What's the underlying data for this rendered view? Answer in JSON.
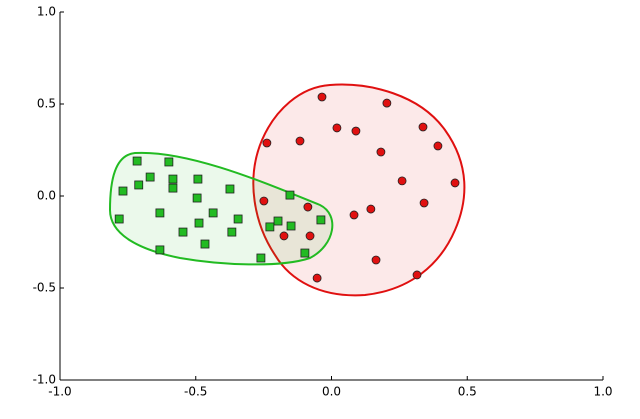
{
  "chart_data": {
    "type": "scatter",
    "xlim": [
      -1.0,
      1.0
    ],
    "ylim": [
      -1.0,
      1.0
    ],
    "xticks": [
      {
        "value": -1.0,
        "label": "-1.0"
      },
      -0.5,
      {
        "value": 0.0,
        "label": "0.0"
      },
      0.5,
      {
        "value": 1.0,
        "label": "1.0"
      }
    ],
    "yticks": [
      {
        "value": -1.0,
        "label": "-1.0"
      },
      -0.5,
      {
        "value": 0.0,
        "label": "0.0"
      },
      0.5,
      {
        "value": 1.0,
        "label": "1.0"
      }
    ],
    "grid": false,
    "series": [
      {
        "color": "#e01010",
        "marker": "circle",
        "x": [
          -0.035,
          0.204,
          0.02,
          0.09,
          0.337,
          -0.238,
          -0.116,
          0.392,
          0.182,
          0.26,
          0.455,
          -0.249,
          -0.087,
          0.341,
          0.145,
          0.083,
          -0.175,
          -0.079,
          0.164,
          0.315,
          -0.053
        ],
        "y": [
          0.538,
          0.505,
          0.37,
          0.353,
          0.375,
          0.288,
          0.299,
          0.272,
          0.239,
          0.082,
          0.071,
          -0.027,
          -0.06,
          -0.038,
          -0.071,
          -0.103,
          -0.217,
          -0.217,
          -0.348,
          -0.429,
          -0.446
        ]
      },
      {
        "color": "#22bb22",
        "marker": "square",
        "x": [
          -0.716,
          -0.599,
          -0.668,
          -0.584,
          -0.492,
          -0.768,
          -0.71,
          -0.584,
          -0.374,
          -0.495,
          -0.153,
          -0.632,
          -0.436,
          -0.782,
          -0.488,
          -0.344,
          -0.197,
          -0.227,
          -0.149,
          -0.039,
          -0.547,
          -0.367,
          -0.466,
          -0.632,
          -0.098,
          -0.26
        ],
        "y": [
          0.19,
          0.185,
          0.103,
          0.092,
          0.092,
          0.027,
          0.06,
          0.043,
          0.038,
          -0.011,
          0.005,
          -0.092,
          -0.092,
          -0.125,
          -0.147,
          -0.125,
          -0.136,
          -0.168,
          -0.163,
          -0.13,
          -0.196,
          -0.196,
          -0.261,
          -0.293,
          -0.31,
          -0.337
        ]
      }
    ]
  }
}
